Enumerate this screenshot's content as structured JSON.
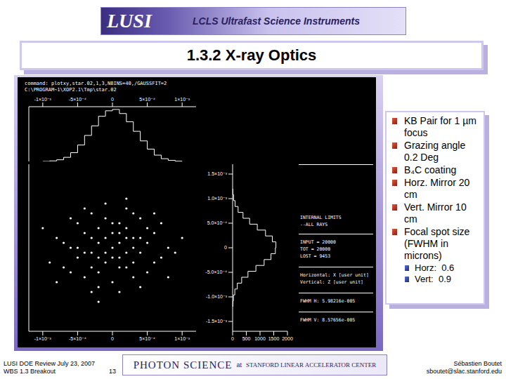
{
  "banner": {
    "logo": "LUSI",
    "subtitle": "LCLS Ultrafast Science Instruments"
  },
  "title": "1.3.2 X-ray Optics",
  "plot": {
    "command": [
      "command: plotxy,star.02,1,3,NBINS=40,/GAUSSFIT=2",
      "C:\\PROGRAM~1\\XOP2.1\\Tmp\\star.02"
    ],
    "info": [
      [
        "INTERNAL LIMITS",
        "--ALL RAYS"
      ],
      [
        "INPUT = 20000",
        "TOT = 20000",
        "LOST = 9453"
      ],
      [
        "Horizontal: X [user unit]",
        "Vertical: Z [user unit]"
      ],
      [
        "FWHM H: 5.98216e-005"
      ],
      [
        "FWHM V: 8.57656e-005"
      ]
    ]
  },
  "chart_data": [
    {
      "type": "histogram",
      "color": "#ffffff",
      "tick_labels": "x",
      "xlim": [
        -0.0012,
        0.0012
      ],
      "xticks": [
        {
          "value": -0.001,
          "label": "-1×10⁻³"
        },
        {
          "value": -0.0005,
          "label": "-5×10⁻⁴"
        },
        0,
        {
          "value": 0.0005,
          "label": "5×10⁻⁴"
        },
        {
          "value": 0.001,
          "label": "1×10⁻³"
        }
      ],
      "ylim": [
        0,
        2000
      ],
      "bins": [
        -0.001,
        -0.0009,
        -0.0008,
        -0.0007,
        -0.0006,
        -0.0005,
        -0.0004,
        -0.0003,
        -0.0002,
        -0.0001,
        0,
        0.0001,
        0.0002,
        0.0003,
        0.0004,
        0.0005,
        0.0006,
        0.0007,
        0.0008,
        0.0009,
        0.001
      ],
      "counts": [
        0,
        20,
        60,
        150,
        320,
        600,
        950,
        1300,
        1650,
        1850,
        1900,
        1750,
        1450,
        1100,
        750,
        450,
        230,
        100,
        40,
        10
      ]
    },
    {
      "type": "scatter",
      "color": "#ffffff",
      "tick_labels": "x",
      "xlim": [
        -0.0012,
        0.0012
      ],
      "xticks": [
        {
          "value": -0.001,
          "label": "-1×10⁻³"
        },
        {
          "value": -0.0005,
          "label": "-5×10⁻⁴"
        },
        0,
        {
          "value": 0.0005,
          "label": "5×10⁻⁴"
        },
        {
          "value": 0.001,
          "label": "1×10⁻³"
        }
      ],
      "ylim": [
        -0.0017,
        0.0017
      ],
      "x": [
        0,
        0.0001,
        -0.0002,
        0.0003,
        -0.0001,
        0.0002,
        -0.0003,
        0.0004,
        -0.0004,
        0.0001,
        -0.0002,
        0.0005,
        -0.0005,
        0.0002,
        -0.0001,
        0.0003,
        -0.0006,
        0.0006,
        0,
        -0.0003,
        0.0007,
        -0.0007,
        0.0004,
        -0.0004,
        0.0002,
        -0.0002,
        0.0008,
        -0.0008,
        0.0005,
        -0.0005,
        0.0001,
        -0.0001,
        0.0002,
        -0.0002,
        0.0003,
        0,
        -0.0003,
        0.0001,
        -0.0004,
        0.0004,
        0.0002,
        -0.0001,
        0,
        0.0001,
        -0.0002,
        0.0003,
        -0.0003,
        0.0005,
        -0.0005,
        0,
        0.0006,
        -0.0006,
        0.0003,
        -0.0004,
        0.0007,
        -0.0007,
        0.0001,
        -0.0001,
        0.0009,
        -0.0009,
        0.0004,
        -0.0003,
        0.0006,
        -0.0006,
        0.0008,
        -0.0008,
        0.0002,
        -0.0002,
        0.001,
        -0.001
      ],
      "values": [
        0,
        -0.0002,
        0.0001,
        0.0002,
        -0.0003,
        0.0004,
        -0.0001,
        -0.0001,
        0.0003,
        0.0005,
        -0.0005,
        0.0001,
        -0.0002,
        -0.0004,
        0.0006,
        -0.0006,
        0,
        0.0003,
        -0.0007,
        0.0007,
        -0.0002,
        -0.0004,
        0.0006,
        -0.0006,
        0.0008,
        -0.0008,
        0,
        0.0002,
        -0.0005,
        0.0005,
        0.0001,
        0.0002,
        -0.0001,
        -0.0002,
        0,
        0.0003,
        0.0002,
        -0.0004,
        -0.0001,
        0.0002,
        0.0002,
        -0.0001,
        -0.0002,
        0.0003,
        0.0004,
        -0.0003,
        -0.0004,
        0.0004,
        0,
        0.0005,
        -0.0003,
        -0.0005,
        0.0007,
        0.0008,
        0.0005,
        0.0001,
        -0.0009,
        0.0009,
        -0.0001,
        -0.0003,
        -0.0008,
        -0.0009,
        0.0007,
        0.0006,
        -0.0006,
        -0.0007,
        0.001,
        -0.0011,
        0.0002,
        0.0004
      ]
    },
    {
      "type": "histogram",
      "orientation": "horizontal",
      "color": "#ffffff",
      "xlim": [
        0,
        2000
      ],
      "xticks": [
        0,
        500,
        1000,
        1500,
        2000
      ],
      "ylim": [
        -0.0017,
        0.0017
      ],
      "yticks": [
        {
          "value": -0.0015,
          "label": "-1.5×10⁻³"
        },
        {
          "value": -0.001,
          "label": "-1.0×10⁻³"
        },
        {
          "value": -0.0005,
          "label": "-5.0×10⁻⁴"
        },
        0,
        {
          "value": 0.0005,
          "label": "5.0×10⁻⁴"
        },
        {
          "value": 0.001,
          "label": "1.0×10⁻³"
        },
        {
          "value": 0.0015,
          "label": "1.5×10⁻³"
        }
      ],
      "bins": [
        -0.0012,
        -0.00108,
        -0.00096,
        -0.00084,
        -0.00072,
        -0.0006,
        -0.00048,
        -0.00036,
        -0.00024,
        -0.00012,
        0,
        0.00012,
        0.00024,
        0.00036,
        0.00048,
        0.0006,
        0.00072,
        0.00084,
        0.00096,
        0.00108,
        0.0012
      ],
      "counts": [
        10,
        30,
        80,
        170,
        330,
        560,
        850,
        1150,
        1400,
        1560,
        1580,
        1450,
        1200,
        900,
        620,
        380,
        200,
        90,
        35,
        10
      ]
    }
  ],
  "bullets": [
    "KB Pair for 1 µm focus",
    "Grazing angle 0.2 Deg",
    "B₄C coating",
    "Horz. Mirror 20 cm",
    "Vert. Mirror 10 cm",
    "Focal spot size (FWHM in microns)"
  ],
  "sub_bullets": [
    "Horz:  0.6",
    "Vert:  0.9"
  ],
  "footer": {
    "left": [
      "LUSI DOE Review July 23, 2007",
      "WBS 1.3 Breakout"
    ],
    "page": "13",
    "center": {
      "main": "PHOTON SCIENCE",
      "at": "at",
      "org": "STANFORD LINEAR ACCELERATOR CENTER"
    },
    "right": [
      "Sébastien Boutet",
      "sboutet@slac.stanford.edu"
    ]
  }
}
